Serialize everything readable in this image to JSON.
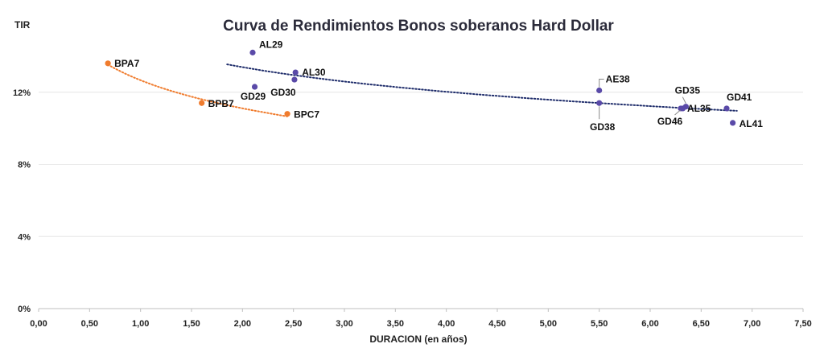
{
  "chart_data": {
    "type": "scatter",
    "title": "Curva de Rendimientos Bonos soberanos Hard Dollar",
    "xlabel": "DURACION (en años)",
    "ylabel": "TIR",
    "xlim": [
      0,
      7.5
    ],
    "ylim": [
      0,
      0.16
    ],
    "x_ticks": [
      "0,00",
      "0,50",
      "1,00",
      "1,50",
      "2,00",
      "2,50",
      "3,00",
      "3,50",
      "4,00",
      "4,50",
      "5,00",
      "5,50",
      "6,00",
      "6,50",
      "7,00",
      "7,50"
    ],
    "y_ticks": [
      "0%",
      "4%",
      "8%",
      "12%"
    ],
    "series": [
      {
        "color": "#5a4aa8",
        "trendline_color": "#1f2d6b",
        "points": [
          {
            "label": "AL29",
            "x": 2.1,
            "y": 0.142
          },
          {
            "label": "AL30",
            "x": 2.52,
            "y": 0.131
          },
          {
            "label": "GD29",
            "x": 2.12,
            "y": 0.123
          },
          {
            "label": "GD30",
            "x": 2.51,
            "y": 0.127
          },
          {
            "label": "AE38",
            "x": 5.5,
            "y": 0.121
          },
          {
            "label": "GD38",
            "x": 5.5,
            "y": 0.114
          },
          {
            "label": "GD35",
            "x": 6.35,
            "y": 0.112
          },
          {
            "label": "AL35",
            "x": 6.3,
            "y": 0.111
          },
          {
            "label": "GD46",
            "x": 6.32,
            "y": 0.111
          },
          {
            "label": "GD41",
            "x": 6.75,
            "y": 0.111
          },
          {
            "label": "AL41",
            "x": 6.81,
            "y": 0.103
          }
        ],
        "trendline": {
          "x_start": 1.85,
          "x_end": 6.85
        }
      },
      {
        "color": "#f07c2e",
        "trendline_color": "#f07c2e",
        "points": [
          {
            "label": "BPA7",
            "x": 0.68,
            "y": 0.136
          },
          {
            "label": "BPB7",
            "x": 1.6,
            "y": 0.114
          },
          {
            "label": "BPC7",
            "x": 2.44,
            "y": 0.108
          }
        ],
        "trendline": {
          "x_start": 0.68,
          "x_end": 2.44
        }
      }
    ],
    "grid": true
  }
}
